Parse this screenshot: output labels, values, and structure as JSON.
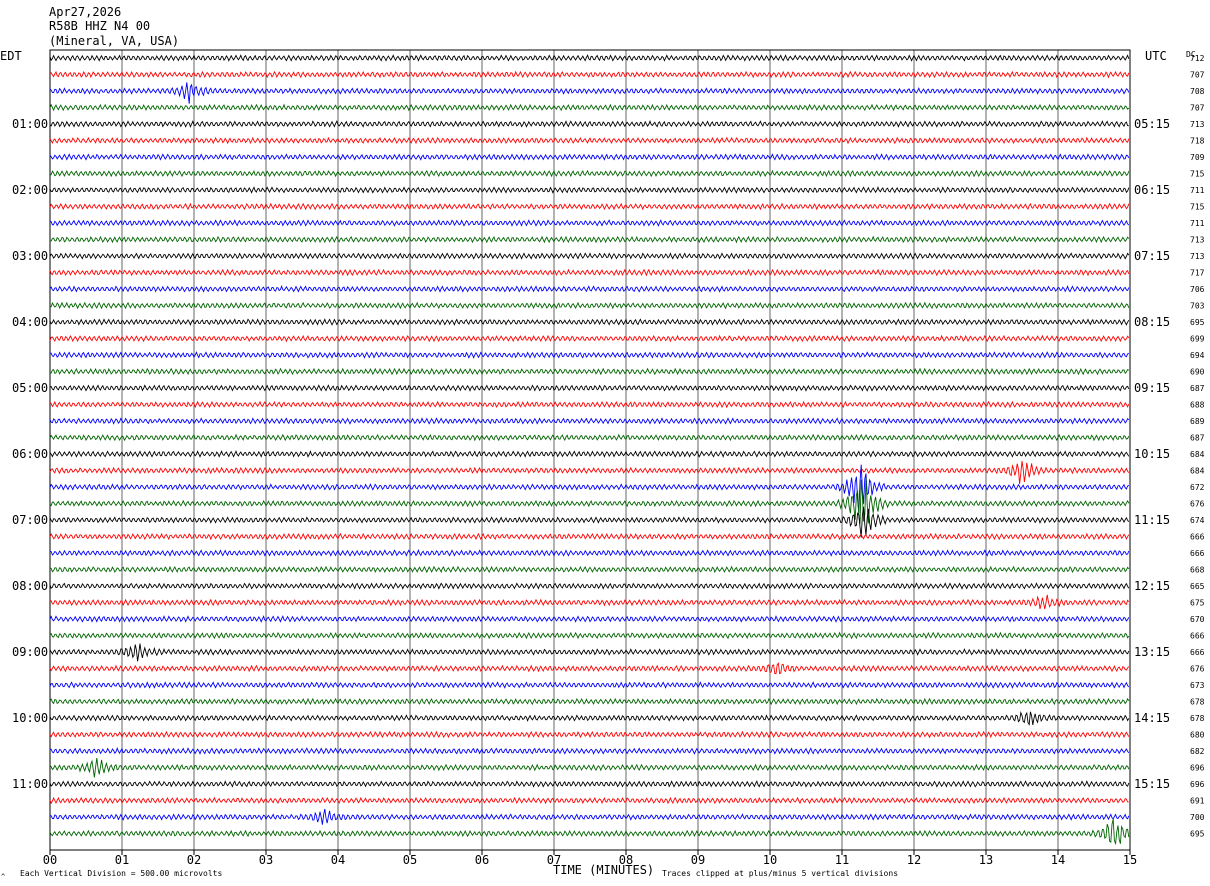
{
  "header": {
    "date": "Apr27,2026",
    "station": "R58B HHZ N4 00",
    "location": "(Mineral, VA, USA)"
  },
  "axes": {
    "left_tz": "EDT",
    "right_tz": "UTC",
    "dc_label": "DC",
    "x_ticks": [
      "00",
      "01",
      "02",
      "03",
      "04",
      "05",
      "06",
      "07",
      "08",
      "09",
      "10",
      "11",
      "12",
      "13",
      "14",
      "15"
    ],
    "x_label": "TIME (MINUTES)"
  },
  "footer": {
    "scale_note": "Each Vertical Division =  500.00 microvolts",
    "clip_note": "Traces clipped at plus/minus 5 vertical divisions"
  },
  "colors": {
    "trace_cycle": [
      "#000000",
      "#ff0000",
      "#0000ff",
      "#006400"
    ],
    "grid": "#000000",
    "background": "#ffffff"
  },
  "chart_data": {
    "type": "line",
    "title": "R58B HHZ N4 00",
    "xlabel": "TIME (MINUTES)",
    "xlim": [
      0,
      15
    ],
    "minutes_per_line": 15,
    "line_count": 48,
    "left_time_labels": [
      "",
      "01:00",
      "02:00",
      "03:00",
      "04:00",
      "05:00",
      "06:00",
      "07:00",
      "08:00",
      "09:00",
      "10:00",
      "11:00"
    ],
    "right_time_labels": [
      "",
      "05:15",
      "06:15",
      "07:15",
      "08:15",
      "09:15",
      "10:15",
      "11:15",
      "12:15",
      "13:15",
      "14:15",
      "15:15"
    ],
    "dc_offsets": [
      712,
      707,
      708,
      707,
      713,
      718,
      709,
      715,
      711,
      715,
      711,
      713,
      713,
      717,
      706,
      703,
      695,
      699,
      694,
      690,
      687,
      688,
      689,
      687,
      684,
      684,
      672,
      676,
      674,
      666,
      666,
      668,
      665,
      675,
      670,
      666,
      666,
      676,
      673,
      678,
      678,
      680,
      682,
      696,
      696,
      691,
      700,
      695
    ],
    "events": [
      {
        "line": 26,
        "minute": 11.25,
        "amp": 2.2
      },
      {
        "line": 27,
        "minute": 11.3,
        "amp": 3.0
      },
      {
        "line": 28,
        "minute": 11.3,
        "amp": 1.6
      },
      {
        "line": 25,
        "minute": 13.5,
        "amp": 1.2
      },
      {
        "line": 2,
        "minute": 1.95,
        "amp": 0.9
      },
      {
        "line": 36,
        "minute": 1.2,
        "amp": 0.7
      },
      {
        "line": 47,
        "minute": 14.8,
        "amp": 1.6
      },
      {
        "line": 43,
        "minute": 0.65,
        "amp": 0.8
      },
      {
        "line": 46,
        "minute": 3.8,
        "amp": 0.6
      },
      {
        "line": 33,
        "minute": 13.8,
        "amp": 0.6
      },
      {
        "line": 37,
        "minute": 10.1,
        "amp": 0.6
      },
      {
        "line": 40,
        "minute": 13.6,
        "amp": 0.7
      }
    ]
  }
}
